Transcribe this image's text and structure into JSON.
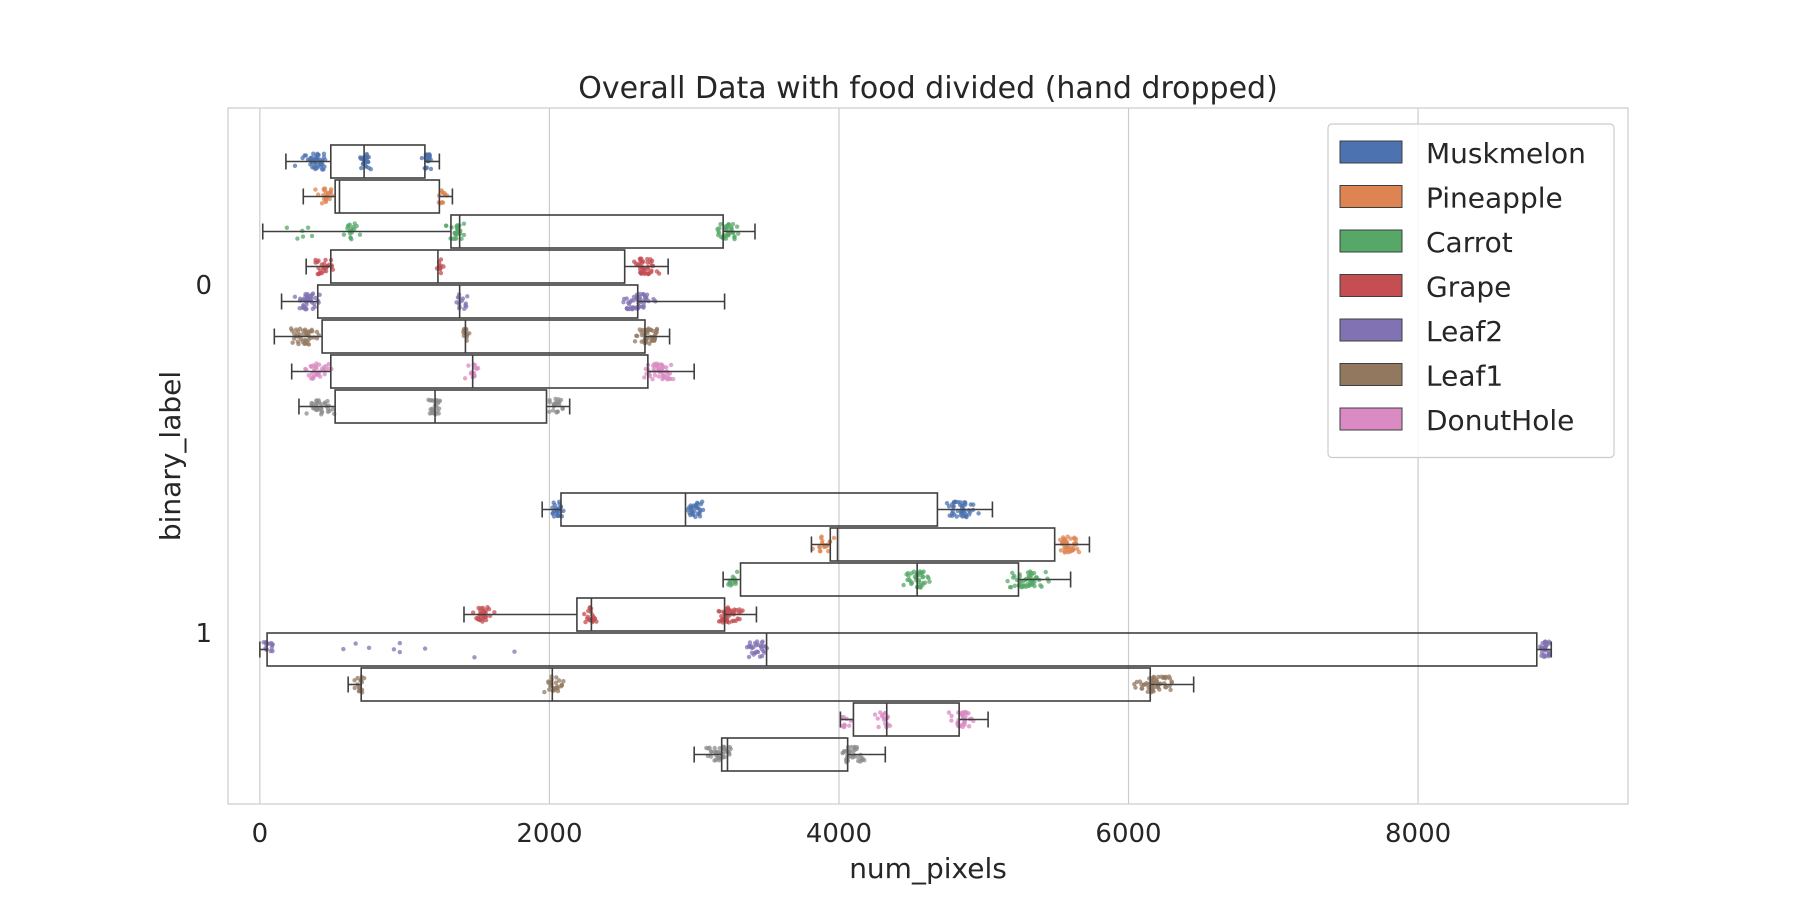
{
  "chart_data": {
    "type": "boxplot",
    "title": "Overall Data with food divided (hand dropped)",
    "xlabel": "num_pixels",
    "ylabel": "binary_label",
    "xlim": [
      -220,
      9450
    ],
    "x_ticks": [
      0,
      2000,
      4000,
      6000,
      8000
    ],
    "x_tick_labels": [
      "0",
      "2000",
      "4000",
      "6000",
      "8000"
    ],
    "categories": [
      "0",
      "1"
    ],
    "grid": "vertical",
    "legend_position": "upper right",
    "series": [
      {
        "name": "Muskmelon",
        "color": "#4c72b0",
        "boxes": [
          {
            "category": "0",
            "whislo": 180,
            "q1": 490,
            "med": 720,
            "q3": 1140,
            "whishi": 1240,
            "clusters": [
              {
                "center": 380,
                "spread": 180,
                "count": 45
              },
              {
                "center": 720,
                "spread": 70,
                "count": 25
              },
              {
                "center": 1160,
                "spread": 60,
                "count": 20
              }
            ]
          },
          {
            "category": "1",
            "whislo": 1950,
            "q1": 2080,
            "med": 2940,
            "q3": 4680,
            "whishi": 5060,
            "clusters": [
              {
                "center": 2060,
                "spread": 90,
                "count": 25
              },
              {
                "center": 3000,
                "spread": 90,
                "count": 30
              },
              {
                "center": 4850,
                "spread": 160,
                "count": 45
              }
            ]
          }
        ]
      },
      {
        "name": "Pineapple",
        "color": "#dd8452",
        "boxes": [
          {
            "category": "0",
            "whislo": 300,
            "q1": 520,
            "med": 550,
            "q3": 1240,
            "whishi": 1330,
            "clusters": [
              {
                "center": 450,
                "spread": 130,
                "count": 22
              },
              {
                "center": 1260,
                "spread": 60,
                "count": 12
              }
            ]
          },
          {
            "category": "1",
            "whislo": 3810,
            "q1": 3940,
            "med": 3990,
            "q3": 5490,
            "whishi": 5730,
            "clusters": [
              {
                "center": 3900,
                "spread": 110,
                "count": 18
              },
              {
                "center": 5590,
                "spread": 140,
                "count": 40
              }
            ]
          }
        ]
      },
      {
        "name": "Carrot",
        "color": "#55a868",
        "boxes": [
          {
            "category": "0",
            "whislo": 20,
            "q1": 1320,
            "med": 1380,
            "q3": 3200,
            "whishi": 3420,
            "clusters": [
              {
                "center": 300,
                "spread": 200,
                "count": 6
              },
              {
                "center": 630,
                "spread": 80,
                "count": 18
              },
              {
                "center": 1360,
                "spread": 100,
                "count": 25
              },
              {
                "center": 3230,
                "spread": 140,
                "count": 40
              }
            ]
          },
          {
            "category": "1",
            "whislo": 3200,
            "q1": 3320,
            "med": 4540,
            "q3": 5240,
            "whishi": 5600,
            "clusters": [
              {
                "center": 3270,
                "spread": 60,
                "count": 14
              },
              {
                "center": 4540,
                "spread": 150,
                "count": 40
              },
              {
                "center": 5300,
                "spread": 230,
                "count": 55
              }
            ]
          }
        ]
      },
      {
        "name": "Grape",
        "color": "#c44e52",
        "boxes": [
          {
            "category": "0",
            "whislo": 320,
            "q1": 490,
            "med": 1230,
            "q3": 2520,
            "whishi": 2820,
            "clusters": [
              {
                "center": 430,
                "spread": 110,
                "count": 25
              },
              {
                "center": 1240,
                "spread": 40,
                "count": 10
              },
              {
                "center": 2650,
                "spread": 150,
                "count": 40
              }
            ]
          },
          {
            "category": "1",
            "whislo": 1410,
            "q1": 2190,
            "med": 2290,
            "q3": 3210,
            "whishi": 3430,
            "clusters": [
              {
                "center": 1540,
                "spread": 110,
                "count": 30
              },
              {
                "center": 2290,
                "spread": 90,
                "count": 20
              },
              {
                "center": 3250,
                "spread": 150,
                "count": 45
              }
            ]
          }
        ]
      },
      {
        "name": "Leaf2",
        "color": "#8172b3",
        "boxes": [
          {
            "category": "0",
            "whislo": 150,
            "q1": 400,
            "med": 1380,
            "q3": 2610,
            "whishi": 3210,
            "clusters": [
              {
                "center": 330,
                "spread": 130,
                "count": 40
              },
              {
                "center": 1390,
                "spread": 60,
                "count": 15
              },
              {
                "center": 2610,
                "spread": 170,
                "count": 50
              }
            ]
          },
          {
            "category": "1",
            "whislo": 0,
            "q1": 50,
            "med": 3500,
            "q3": 8820,
            "whishi": 8920,
            "clusters": [
              {
                "center": 60,
                "spread": 70,
                "count": 15
              },
              {
                "center": 1200,
                "spread": 1100,
                "count": 9
              },
              {
                "center": 3430,
                "spread": 120,
                "count": 30
              },
              {
                "center": 8880,
                "spread": 80,
                "count": 30
              }
            ]
          }
        ]
      },
      {
        "name": "Leaf1",
        "color": "#937860",
        "boxes": [
          {
            "category": "0",
            "whislo": 100,
            "q1": 430,
            "med": 1420,
            "q3": 2660,
            "whishi": 2830,
            "clusters": [
              {
                "center": 320,
                "spread": 180,
                "count": 40
              },
              {
                "center": 1420,
                "spread": 40,
                "count": 12
              },
              {
                "center": 2680,
                "spread": 140,
                "count": 45
              }
            ]
          },
          {
            "category": "1",
            "whislo": 610,
            "q1": 700,
            "med": 2020,
            "q3": 6150,
            "whishi": 6450,
            "clusters": [
              {
                "center": 690,
                "spread": 70,
                "count": 16
              },
              {
                "center": 2030,
                "spread": 110,
                "count": 25
              },
              {
                "center": 6180,
                "spread": 230,
                "count": 55
              }
            ]
          }
        ]
      },
      {
        "name": "DonutHole",
        "color": "#da8bc3",
        "boxes": [
          {
            "category": "0",
            "whislo": 220,
            "q1": 490,
            "med": 1470,
            "q3": 2680,
            "whishi": 3000,
            "clusters": [
              {
                "center": 400,
                "spread": 140,
                "count": 35
              },
              {
                "center": 1470,
                "spread": 70,
                "count": 15
              },
              {
                "center": 2770,
                "spread": 180,
                "count": 50
              }
            ]
          },
          {
            "category": "1",
            "whislo": 4010,
            "q1": 4100,
            "med": 4330,
            "q3": 4830,
            "whishi": 5030,
            "clusters": [
              {
                "center": 4050,
                "spread": 60,
                "count": 12
              },
              {
                "center": 4300,
                "spread": 100,
                "count": 18
              },
              {
                "center": 4850,
                "spread": 120,
                "count": 35
              }
            ]
          }
        ]
      },
      {
        "name": "",
        "color": "#8c8c8c",
        "boxes": [
          {
            "category": "0",
            "whislo": 270,
            "q1": 520,
            "med": 1210,
            "q3": 1980,
            "whishi": 2140,
            "clusters": [
              {
                "center": 420,
                "spread": 140,
                "count": 35
              },
              {
                "center": 1210,
                "spread": 70,
                "count": 25
              },
              {
                "center": 2040,
                "spread": 90,
                "count": 20
              }
            ]
          },
          {
            "category": "1",
            "whislo": 3000,
            "q1": 3190,
            "med": 3230,
            "q3": 4060,
            "whishi": 4320,
            "clusters": [
              {
                "center": 3180,
                "spread": 140,
                "count": 40
              },
              {
                "center": 4100,
                "spread": 130,
                "count": 35
              }
            ]
          }
        ]
      }
    ]
  }
}
